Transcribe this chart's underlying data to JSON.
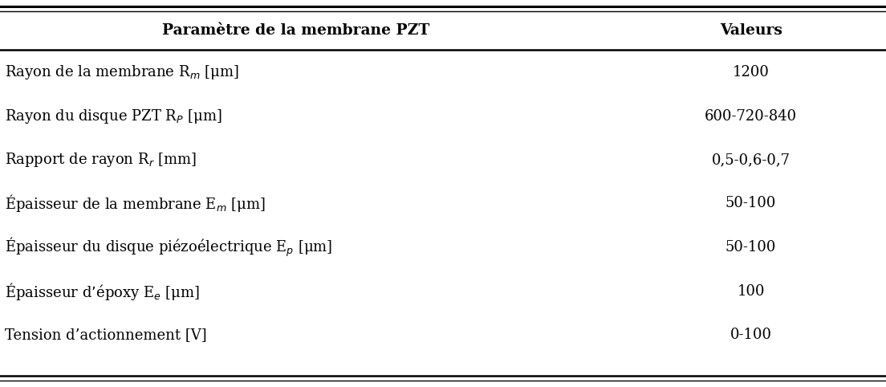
{
  "header": [
    "Paramètre de la membrane PZT",
    "Valeurs"
  ],
  "rows": [
    [
      "Rayon de la membrane R$_m$ [μm]",
      "1200"
    ],
    [
      "Rayon du disque PZT R$_P$ [μm]",
      "600-720-840"
    ],
    [
      "Rapport de rayon R$_r$ [mm]",
      "0,5-0,6-0,7"
    ],
    [
      "Épaisseur de la membrane E$_m$ [μm]",
      "50-100"
    ],
    [
      "Épaisseur du disque piézoélectrique E$_p$ [μm]",
      "50-100"
    ],
    [
      "Épaisseur d’époxy E$_e$ [μm]",
      "100"
    ],
    [
      "Tension d’actionnement [V]",
      "0-100"
    ]
  ],
  "col_split": 0.695,
  "background_color": "#ffffff",
  "header_fontsize": 13.5,
  "row_fontsize": 13.0,
  "header_color": "#000000",
  "row_color": "#000000",
  "line_color": "#000000"
}
